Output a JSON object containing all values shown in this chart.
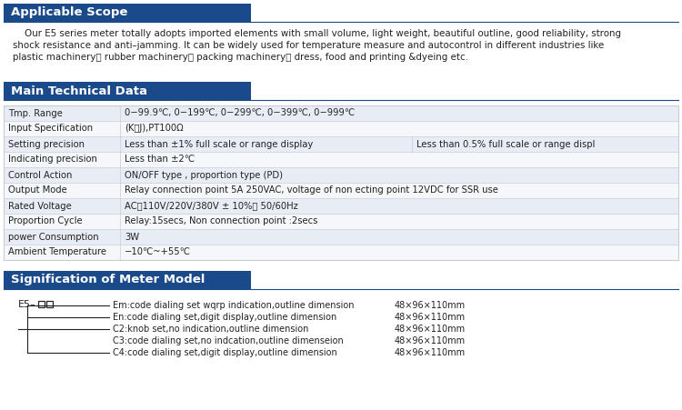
{
  "bg_color": "#ffffff",
  "header_bg": "#1a4a8a",
  "header_text_color": "#ffffff",
  "table_border": "#c8cdd8",
  "table_row_even": "#e8edf5",
  "table_row_odd": "#f5f7fb",
  "text_color": "#222222",
  "divider_color": "#1a4a8a",
  "section1_title": "Applicable Scope",
  "section1_body_line1": "    Our E5 series meter totally adopts imported elements with small volume, light weight, beautiful outline, good reliability, strong",
  "section1_body_line2": "shock resistance and anti–jamming. It can be widely used for temperature measure and autocontrol in different industries like",
  "section1_body_line3": "plastic machinery， rubber machinery， packing machinery， dress, food and printing &dyeing etc.",
  "section2_title": "Main Technical Data",
  "table_rows": [
    [
      "Tmp. Range",
      "0−99.9℃, 0−199℃, 0−299℃, 0−399℃, 0−999℃",
      ""
    ],
    [
      "Input Specification",
      "(K、J),PT100Ω",
      ""
    ],
    [
      "Setting precision",
      "Less than ±1% full scale or range display",
      "Less than 0.5% full scale or range displ"
    ],
    [
      "Indicating precision",
      "Less than ±2℃",
      ""
    ],
    [
      "Control Action",
      "ON/OFF type , proportion type (PD)",
      ""
    ],
    [
      "Output Mode",
      "Relay connection point 5A 250VAC, voltage of non ecting point 12VDC for SSR use",
      ""
    ],
    [
      "Rated Voltage",
      "AC：110V/220V/380V ± 10%， 50/60Hz",
      ""
    ],
    [
      "Proportion Cycle",
      "Relay:15secs, Non connection point :2secs",
      ""
    ],
    [
      "power Consumption",
      "3W",
      ""
    ],
    [
      "Ambient Temperature",
      "−10℃~+55℃",
      ""
    ]
  ],
  "section3_title": "Signification of Meter Model",
  "model_label": "E5–",
  "model_lines": [
    [
      "Em:code dialing set wqrp indication,outline dimension",
      "48×96×110mm"
    ],
    [
      "En:code dialing set,digit display,outline dimension",
      "48×96×110mm"
    ],
    [
      "C2:knob set,no indication,outline dimension",
      "48×96×110mm"
    ],
    [
      "C3:code dialing set,no indcation,outline dimenseion",
      "48×96×110mm"
    ],
    [
      "C4:code dialing set,digit display,outline dimension",
      "48×96×110mm"
    ]
  ]
}
